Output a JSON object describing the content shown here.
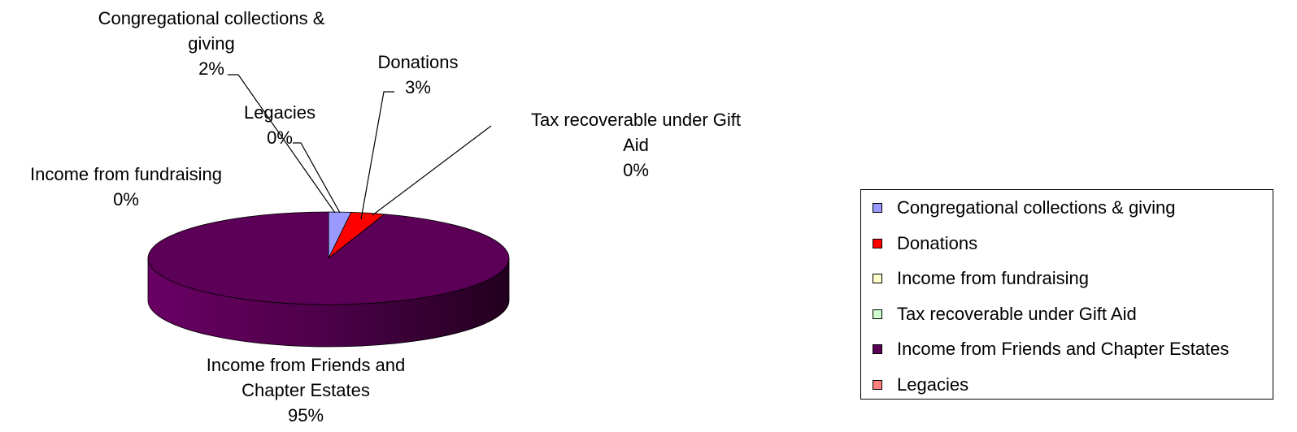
{
  "chart_data": {
    "type": "pie",
    "style": "3d",
    "categories": [
      "Congregational collections & giving",
      "Donations",
      "Income from fundraising",
      "Tax recoverable under Gift Aid",
      "Income from Friends and Chapter Estates",
      "Legacies"
    ],
    "values": [
      2,
      3,
      0,
      0,
      95,
      0
    ],
    "value_labels": [
      "2%",
      "3%",
      "0%",
      "0%",
      "95%",
      "0%"
    ],
    "label_lines": [
      [
        "Congregational collections &",
        "giving",
        "2%"
      ],
      [
        "Donations",
        "3%"
      ],
      [
        "Income from fundraising",
        "0%"
      ],
      [
        "Tax recoverable under Gift",
        "Aid",
        "0%"
      ],
      [
        "Income from Friends and",
        "Chapter Estates",
        "95%"
      ],
      [
        "Legacies",
        "0%"
      ]
    ],
    "colors": [
      "#9999ff",
      "#ff0000",
      "#ffffcc",
      "#ccffcc",
      "#5c0057",
      "#ff8080"
    ],
    "legend_position": "right"
  }
}
